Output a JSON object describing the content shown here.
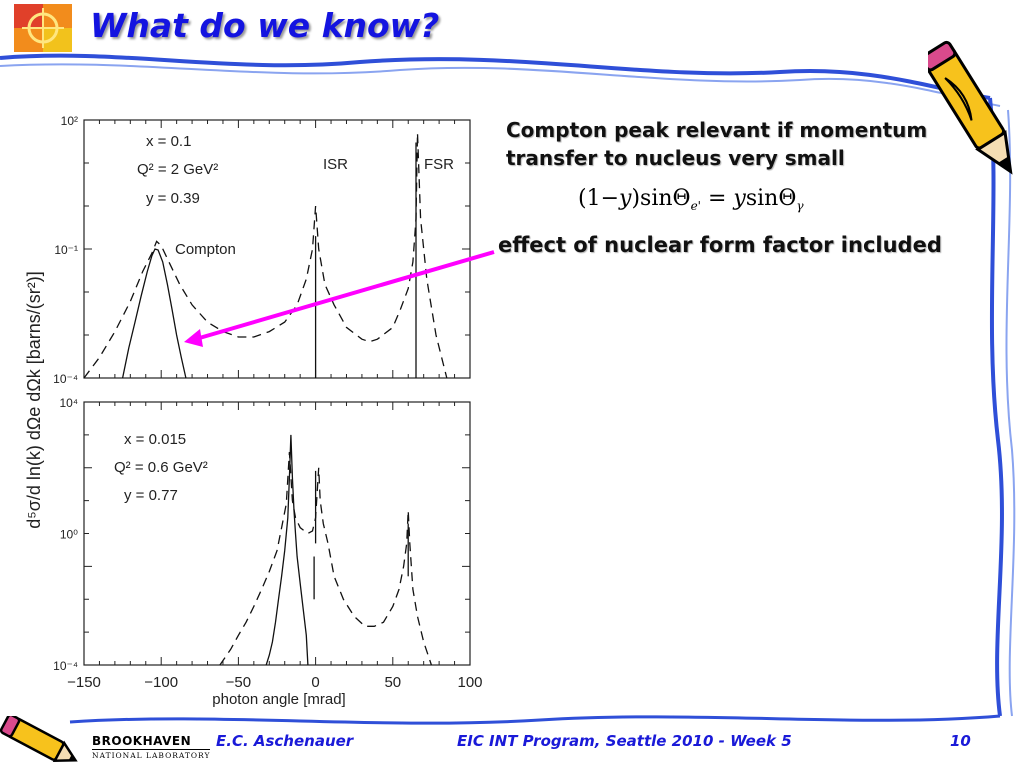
{
  "slide": {
    "title": "What do we know?",
    "notes": [
      "Compton peak relevant if momentum",
      "transfer to nucleus very small"
    ],
    "equation": {
      "lhs": "(1−",
      "y": "y",
      "mid": ")sinΘ",
      "sub1": "e'",
      "eq": " = ",
      "y2": "y",
      "rhs": "sinΘ",
      "sub2": "γ"
    },
    "arrow_label": "effect of nuclear form factor included",
    "arrow_color": "#ff00ff",
    "title_color": "#1414e0"
  },
  "footer": {
    "lab_name": "BROOKHAVEN",
    "lab_sub": "NATIONAL LABORATORY",
    "author": "E.C. Aschenauer",
    "program": "EIC INT Program, Seattle 2010 - Week 5",
    "page": "10"
  },
  "icons": [
    "logo-icon",
    "pencil-icon",
    "footer-pencil-icon"
  ],
  "chart_data": [
    {
      "type": "line",
      "panel": "top",
      "xlim": [
        -150,
        100
      ],
      "ylim": [
        0.0001,
        100
      ],
      "yscale": "log",
      "yticks": [
        "10²",
        "10⁻¹",
        "10⁻⁴"
      ],
      "ylabel": "d⁵σ/d ln(k) dΩe dΩk [barns/(sr²)]",
      "annotations": [
        "x = 0.1",
        "Q² = 2 GeV²",
        "y = 0.39",
        "ISR",
        "FSR",
        "Compton"
      ],
      "series": [
        {
          "style": "dashed",
          "x": [
            -150,
            -140,
            -130,
            -120,
            -112,
            -106,
            -103,
            -100,
            -95,
            -88,
            -80,
            -70,
            -60,
            -50,
            -40,
            -30,
            -20,
            -12,
            -6,
            -2,
            0,
            2,
            6,
            12,
            20,
            30,
            35,
            40,
            50,
            55,
            60,
            63,
            65,
            66,
            68,
            72,
            78,
            85
          ],
          "y": [
            0.0001,
            0.0003,
            0.0012,
            0.006,
            0.03,
            0.08,
            0.15,
            0.12,
            0.05,
            0.015,
            0.005,
            0.002,
            0.0012,
            0.0009,
            0.0009,
            0.0012,
            0.002,
            0.005,
            0.02,
            0.1,
            1,
            0.1,
            0.015,
            0.005,
            0.0015,
            0.0008,
            0.0007,
            0.0008,
            0.0015,
            0.004,
            0.012,
            0.05,
            0.5,
            50,
            0.5,
            0.02,
            0.001,
            0.0001
          ]
        },
        {
          "style": "solid",
          "x": [
            -125,
            -121,
            -117,
            -113,
            -109,
            -106,
            -104,
            -102,
            -99,
            -96,
            -93,
            -90,
            -87,
            -84
          ],
          "y": [
            0.0001,
            0.0005,
            0.002,
            0.008,
            0.03,
            0.07,
            0.1,
            0.095,
            0.05,
            0.015,
            0.004,
            0.001,
            0.0003,
            0.0001
          ]
        },
        {
          "style": "solid",
          "x": [
            0,
            0
          ],
          "y": [
            0.0001,
            0.2
          ]
        },
        {
          "style": "solid",
          "x": [
            65,
            65
          ],
          "y": [
            0.0001,
            30
          ]
        }
      ]
    },
    {
      "type": "line",
      "panel": "bottom",
      "xlim": [
        -150,
        100
      ],
      "ylim": [
        0.0001,
        10000
      ],
      "yscale": "log",
      "yticks": [
        "10⁴",
        "10⁰",
        "10⁻⁴"
      ],
      "xticks": [
        "−150",
        "−100",
        "−50",
        "0",
        "50",
        "100"
      ],
      "xlabel": "photon angle [mrad]",
      "annotations": [
        "x = 0.015",
        "Q² = 0.6 GeV²",
        "y = 0.77"
      ],
      "series": [
        {
          "style": "dashed",
          "x": [
            -62,
            -55,
            -50,
            -45,
            -40,
            -35,
            -30,
            -25,
            -22,
            -19,
            -17,
            -15,
            -13,
            -10,
            -5,
            -2,
            0,
            2,
            3,
            5,
            8,
            12,
            18,
            25,
            32,
            38,
            44,
            50,
            54,
            57,
            59,
            60,
            61,
            63,
            66,
            70,
            75
          ],
          "y": [
            0.0001,
            0.0003,
            0.0008,
            0.002,
            0.006,
            0.02,
            0.07,
            0.3,
            1.5,
            8,
            300,
            10,
            3,
            1.5,
            1,
            1.2,
            3,
            100,
            10,
            2,
            0.5,
            0.05,
            0.01,
            0.003,
            0.0015,
            0.0015,
            0.002,
            0.006,
            0.02,
            0.1,
            0.5,
            5,
            0.5,
            0.02,
            0.003,
            0.0005,
            0.0001
          ]
        },
        {
          "style": "solid",
          "x": [
            -32,
            -30,
            -28,
            -26,
            -24,
            -22,
            -20,
            -18,
            -17,
            -16,
            -15,
            -14,
            -13,
            -12,
            -10,
            -8,
            -6,
            -5
          ],
          "y": [
            0.0001,
            0.0002,
            0.0005,
            0.002,
            0.01,
            0.05,
            0.3,
            3,
            50,
            1000,
            50,
            5,
            1,
            0.2,
            0.03,
            0.005,
            0.0008,
            0.0001
          ]
        },
        {
          "style": "solid",
          "x": [
            -1,
            -1
          ],
          "y": [
            0.01,
            0.2
          ]
        },
        {
          "style": "solid",
          "x": [
            0,
            0
          ],
          "y": [
            0.5,
            80
          ]
        },
        {
          "style": "solid",
          "x": [
            60,
            60
          ],
          "y": [
            0.05,
            2
          ]
        }
      ]
    }
  ]
}
